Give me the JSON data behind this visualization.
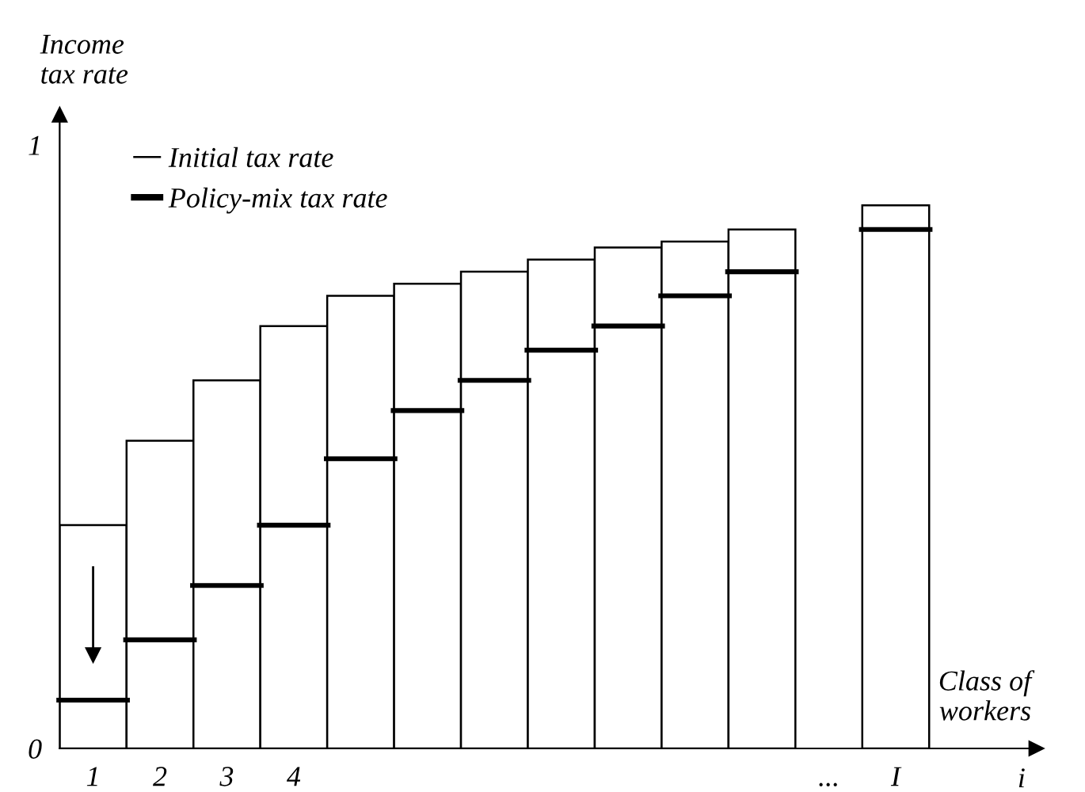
{
  "chart_data": {
    "type": "bar",
    "ylabel": "Income\ntax rate",
    "xlabel": "Class of\nworkers",
    "categories": [
      "1",
      "2",
      "3",
      "4",
      null,
      null,
      null,
      null,
      null,
      null,
      null,
      "...",
      "I"
    ],
    "series": [
      {
        "name": "Initial tax rate",
        "type": "bar",
        "color": "#000000",
        "values": [
          0.37,
          0.51,
          0.61,
          0.7,
          0.75,
          0.77,
          0.79,
          0.81,
          0.83,
          0.84,
          0.86,
          null,
          0.9
        ]
      },
      {
        "name": "Policy-mix tax rate",
        "type": "bar",
        "color": "#000000",
        "values": [
          0.08,
          0.18,
          0.27,
          0.37,
          0.48,
          0.56,
          0.61,
          0.66,
          0.7,
          0.75,
          0.79,
          null,
          0.86
        ]
      }
    ],
    "ylim": [
      0,
      1.05
    ],
    "yticks": [
      0,
      1
    ],
    "annotations": [
      "i"
    ],
    "legend": "top left",
    "grid": false
  }
}
